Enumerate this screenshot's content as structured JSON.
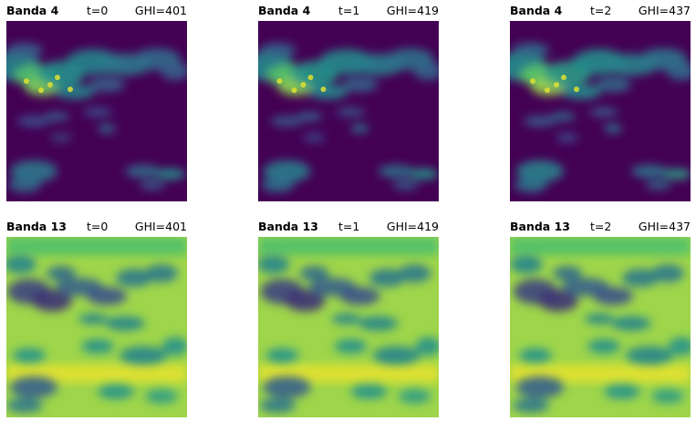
{
  "chart_data": {
    "type": "heatmap",
    "colormap": "viridis",
    "colors": {
      "low": "#440154",
      "mid_low": "#3b528b",
      "mid": "#21918c",
      "mid_high": "#5ec962",
      "high": "#fde725"
    },
    "rows": [
      {
        "band": "Banda 4",
        "background_level": 0.0,
        "panels": [
          {
            "band": "Banda 4",
            "time": "t=0",
            "ghi": "GHI=401"
          },
          {
            "band": "Banda 4",
            "time": "t=1",
            "ghi": "GHI=419"
          },
          {
            "band": "Banda 4",
            "time": "t=2",
            "ghi": "GHI=437"
          }
        ]
      },
      {
        "band": "Banda 13",
        "background_level": 0.85,
        "panels": [
          {
            "band": "Banda 13",
            "time": "t=0",
            "ghi": "GHI=401"
          },
          {
            "band": "Banda 13",
            "time": "t=1",
            "ghi": "GHI=419"
          },
          {
            "band": "Banda 13",
            "time": "t=2",
            "ghi": "GHI=437"
          }
        ]
      }
    ]
  }
}
